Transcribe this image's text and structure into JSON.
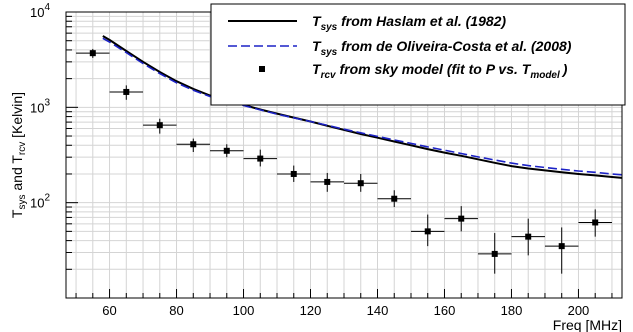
{
  "chart_data": {
    "type": "line",
    "xlabel": "Freq [MHz]",
    "ylabel": {
      "prefix_a": "T",
      "sub_a": "sys",
      "mid": " and T",
      "sub_b": "rcv",
      "suffix": " [Kelvin]"
    },
    "xlim": [
      47,
      213
    ],
    "ylim": [
      10,
      10000
    ],
    "y_scale": "log",
    "grid": true,
    "legend_position": "top-right",
    "x_ticks": [
      60,
      80,
      100,
      120,
      140,
      160,
      180,
      200
    ],
    "y_ticks": [
      {
        "base": "10",
        "exp": "2",
        "value": 100
      },
      {
        "base": "10",
        "exp": "3",
        "value": 1000
      },
      {
        "base": "10",
        "exp": "4",
        "value": 10000
      }
    ],
    "series": [
      {
        "name": {
          "main": "T",
          "sub": "sys",
          "rest": " from Haslam et al. (1982)"
        },
        "style": "solid",
        "color": "#000000",
        "points": [
          [
            58,
            5600
          ],
          [
            60,
            5100
          ],
          [
            65,
            3900
          ],
          [
            70,
            3000
          ],
          [
            75,
            2350
          ],
          [
            80,
            1880
          ],
          [
            85,
            1560
          ],
          [
            90,
            1330
          ],
          [
            95,
            1180
          ],
          [
            100,
            1060
          ],
          [
            105,
            950
          ],
          [
            110,
            860
          ],
          [
            115,
            780
          ],
          [
            120,
            710
          ],
          [
            125,
            640
          ],
          [
            130,
            580
          ],
          [
            135,
            525
          ],
          [
            140,
            480
          ],
          [
            145,
            438
          ],
          [
            150,
            400
          ],
          [
            155,
            365
          ],
          [
            160,
            335
          ],
          [
            165,
            310
          ],
          [
            170,
            285
          ],
          [
            175,
            262
          ],
          [
            180,
            242
          ],
          [
            185,
            228
          ],
          [
            190,
            218
          ],
          [
            195,
            208
          ],
          [
            200,
            200
          ],
          [
            205,
            193
          ],
          [
            210,
            186
          ],
          [
            213,
            182
          ]
        ]
      },
      {
        "name": {
          "main": "T",
          "sub": "sys",
          "rest": " from de Oliveira-Costa et al. (2008)"
        },
        "style": "dashed",
        "color": "#1c22c6",
        "points": [
          [
            58,
            5300
          ],
          [
            60,
            4850
          ],
          [
            65,
            3750
          ],
          [
            70,
            2880
          ],
          [
            75,
            2260
          ],
          [
            80,
            1810
          ],
          [
            85,
            1510
          ],
          [
            90,
            1300
          ],
          [
            95,
            1160
          ],
          [
            100,
            1045
          ],
          [
            105,
            940
          ],
          [
            110,
            850
          ],
          [
            115,
            775
          ],
          [
            120,
            710
          ],
          [
            125,
            648
          ],
          [
            130,
            590
          ],
          [
            135,
            540
          ],
          [
            140,
            495
          ],
          [
            145,
            455
          ],
          [
            150,
            418
          ],
          [
            155,
            385
          ],
          [
            160,
            355
          ],
          [
            165,
            328
          ],
          [
            170,
            302
          ],
          [
            175,
            280
          ],
          [
            180,
            260
          ],
          [
            185,
            245
          ],
          [
            190,
            234
          ],
          [
            195,
            224
          ],
          [
            200,
            215
          ],
          [
            205,
            208
          ],
          [
            210,
            200
          ],
          [
            213,
            196
          ]
        ]
      },
      {
        "name": {
          "main": "T",
          "sub": "rcv",
          "rest": " from sky model (fit to P vs. T",
          "sub2": "model",
          "end": ")"
        },
        "style": "points",
        "color": "#000000",
        "points": [
          {
            "x": 55,
            "y": 3700,
            "xerr": 5,
            "ylo": 3300,
            "yhi": 4100
          },
          {
            "x": 65,
            "y": 1450,
            "xerr": 5,
            "ylo": 1200,
            "yhi": 1700
          },
          {
            "x": 75,
            "y": 650,
            "xerr": 5,
            "ylo": 530,
            "yhi": 760
          },
          {
            "x": 85,
            "y": 410,
            "xerr": 5,
            "ylo": 340,
            "yhi": 470
          },
          {
            "x": 95,
            "y": 350,
            "xerr": 5,
            "ylo": 300,
            "yhi": 410
          },
          {
            "x": 105,
            "y": 290,
            "xerr": 5,
            "ylo": 240,
            "yhi": 360
          },
          {
            "x": 115,
            "y": 200,
            "xerr": 5,
            "ylo": 165,
            "yhi": 245
          },
          {
            "x": 125,
            "y": 165,
            "xerr": 5,
            "ylo": 130,
            "yhi": 205
          },
          {
            "x": 135,
            "y": 160,
            "xerr": 5,
            "ylo": 130,
            "yhi": 200
          },
          {
            "x": 145,
            "y": 110,
            "xerr": 5,
            "ylo": 90,
            "yhi": 135
          },
          {
            "x": 155,
            "y": 50,
            "xerr": 5,
            "ylo": 35,
            "yhi": 75
          },
          {
            "x": 165,
            "y": 68,
            "xerr": 5,
            "ylo": 50,
            "yhi": 92
          },
          {
            "x": 175,
            "y": 29,
            "xerr": 5,
            "ylo": 18,
            "yhi": 48
          },
          {
            "x": 185,
            "y": 44,
            "xerr": 5,
            "ylo": 28,
            "yhi": 68
          },
          {
            "x": 195,
            "y": 35,
            "xerr": 5,
            "ylo": 18,
            "yhi": 55
          },
          {
            "x": 205,
            "y": 62,
            "xerr": 5,
            "ylo": 44,
            "yhi": 85
          }
        ]
      }
    ]
  }
}
